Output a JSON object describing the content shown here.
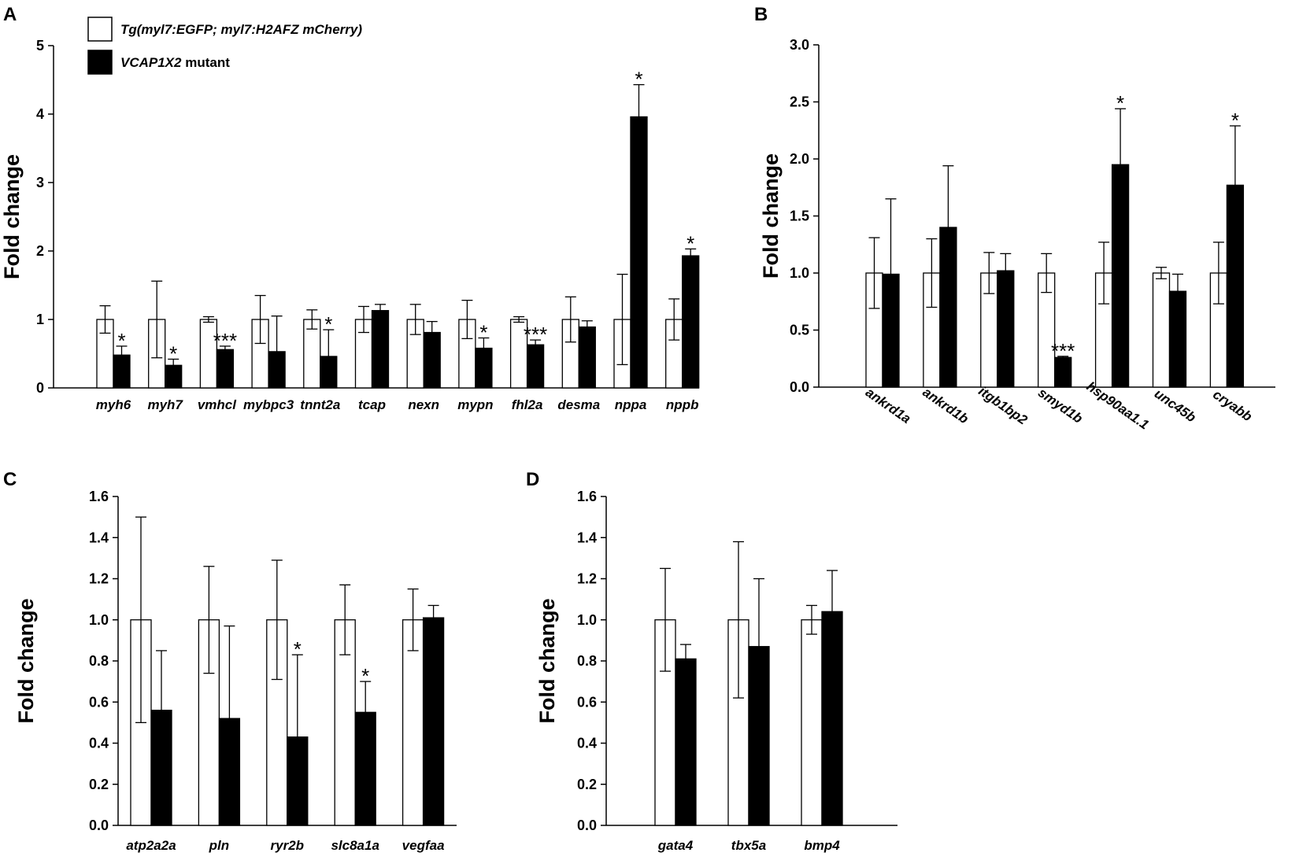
{
  "legend": {
    "wt_label_italic": "Tg(myl7:EGFP; myl7:H2AFZ mCherry)",
    "mut_label_italic": "VCAP1X2",
    "mut_label_rest": " mutant"
  },
  "colors": {
    "wt_fill": "#ffffff",
    "mut_fill": "#000000",
    "stroke": "#000000"
  },
  "chart_data": [
    {
      "panel": "A",
      "type": "bar",
      "ylabel": "Fold change",
      "ylim": [
        0,
        5
      ],
      "yticks": [
        "0",
        "1",
        "2",
        "3",
        "4",
        "5"
      ],
      "categories": [
        "myh6",
        "myh7",
        "vmhcl",
        "mybpc3",
        "tnnt2a",
        "tcap",
        "nexn",
        "mypn",
        "fhl2a",
        "desma",
        "nppa",
        "nppb"
      ],
      "series": [
        {
          "name": "Tg(myl7:EGFP; myl7:H2AFZ mCherry)",
          "values": [
            1.0,
            1.0,
            1.0,
            1.0,
            1.0,
            1.0,
            1.0,
            1.0,
            1.0,
            1.0,
            1.0,
            1.0
          ],
          "errors": [
            0.2,
            0.56,
            0.04,
            0.35,
            0.14,
            0.19,
            0.22,
            0.28,
            0.04,
            0.33,
            0.66,
            0.3
          ]
        },
        {
          "name": "VCAP1X2 mutant",
          "values": [
            0.48,
            0.33,
            0.56,
            0.53,
            0.46,
            1.13,
            0.81,
            0.58,
            0.63,
            0.89,
            3.96,
            1.93
          ],
          "errors": [
            0.13,
            0.09,
            0.05,
            0.52,
            0.39,
            0.09,
            0.16,
            0.15,
            0.07,
            0.09,
            0.47,
            0.1
          ]
        }
      ],
      "significance": [
        "*",
        "*",
        "***",
        "",
        "*",
        "",
        "",
        "*",
        "***",
        "",
        "*",
        "*"
      ]
    },
    {
      "panel": "B",
      "type": "bar",
      "ylabel": "Fold change",
      "ylim": [
        0,
        3
      ],
      "yticks": [
        "0.0",
        "0.5",
        "1.0",
        "1.5",
        "2.0",
        "2.5",
        "3.0"
      ],
      "categories": [
        "ankrd1a",
        "ankrd1b",
        "itgb1bp2",
        "smyd1b",
        "hsp90aa1.1",
        "unc45b",
        "cryabb"
      ],
      "series": [
        {
          "name": "Tg(myl7:EGFP; myl7:H2AFZ mCherry)",
          "values": [
            1.0,
            1.0,
            1.0,
            1.0,
            1.0,
            1.0,
            1.0
          ],
          "errors": [
            0.31,
            0.3,
            0.18,
            0.17,
            0.27,
            0.05,
            0.27
          ]
        },
        {
          "name": "VCAP1X2 mutant",
          "values": [
            0.99,
            1.4,
            1.02,
            0.26,
            1.95,
            0.84,
            1.77
          ],
          "errors": [
            0.66,
            0.54,
            0.15,
            0.01,
            0.49,
            0.15,
            0.52
          ]
        }
      ],
      "significance": [
        "",
        "",
        "",
        "***",
        "*",
        "",
        "*"
      ]
    },
    {
      "panel": "C",
      "type": "bar",
      "ylabel": "Fold change",
      "ylim": [
        0,
        1.6
      ],
      "yticks": [
        "0.0",
        "0.2",
        "0.4",
        "0.6",
        "0.8",
        "1.0",
        "1.2",
        "1.4",
        "1.6"
      ],
      "categories": [
        "atp2a2a",
        "pln",
        "ryr2b",
        "slc8a1a",
        "vegfaa"
      ],
      "series": [
        {
          "name": "Tg(myl7:EGFP; myl7:H2AFZ mCherry)",
          "values": [
            1.0,
            1.0,
            1.0,
            1.0,
            1.0
          ],
          "errors": [
            0.5,
            0.26,
            0.29,
            0.17,
            0.15
          ]
        },
        {
          "name": "VCAP1X2 mutant",
          "values": [
            0.56,
            0.52,
            0.43,
            0.55,
            1.01
          ],
          "errors": [
            0.29,
            0.45,
            0.4,
            0.15,
            0.06
          ]
        }
      ],
      "significance": [
        "",
        "",
        "*",
        "*",
        ""
      ]
    },
    {
      "panel": "D",
      "type": "bar",
      "ylabel": "Fold change",
      "ylim": [
        0,
        1.6
      ],
      "yticks": [
        "0.0",
        "0.2",
        "0.4",
        "0.6",
        "0.8",
        "1.0",
        "1.2",
        "1.4",
        "1.6"
      ],
      "categories": [
        "gata4",
        "tbx5a",
        "bmp4"
      ],
      "series": [
        {
          "name": "Tg(myl7:EGFP; myl7:H2AFZ mCherry)",
          "values": [
            1.0,
            1.0,
            1.0
          ],
          "errors": [
            0.25,
            0.38,
            0.07
          ]
        },
        {
          "name": "VCAP1X2 mutant",
          "values": [
            0.81,
            0.87,
            1.04
          ],
          "errors": [
            0.07,
            0.33,
            0.2
          ]
        }
      ],
      "significance": [
        "",
        "",
        ""
      ]
    }
  ]
}
